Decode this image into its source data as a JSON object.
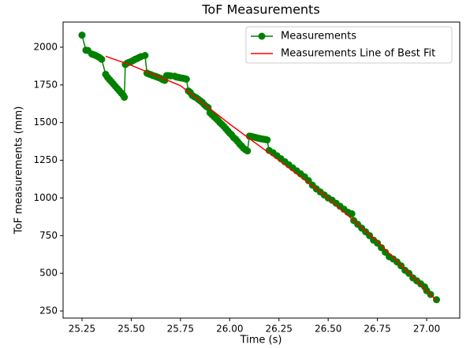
{
  "chart_data": {
    "type": "line",
    "title": "ToF Measurements",
    "xlabel": "Time (s)",
    "ylabel": "ToF measurements (mm)",
    "xlim": [
      25.154,
      27.168
    ],
    "ylim": [
      203,
      2167
    ],
    "xticks": [
      25.25,
      {
        "value": 25.5,
        "label": "25.50"
      },
      25.75,
      {
        "value": 26,
        "label": "26.00"
      },
      26.25,
      {
        "value": 26.5,
        "label": "26.50"
      },
      26.75,
      {
        "value": 27,
        "label": "27.00"
      }
    ],
    "yticks": [
      250,
      500,
      750,
      1000,
      1250,
      1500,
      1750,
      2000
    ],
    "legend": "upper right",
    "grid": false,
    "series": [
      {
        "name": "Measurements",
        "color": "#008000",
        "marker": "o",
        "x": [
          25.25,
          25.27,
          25.28,
          25.3,
          25.31,
          25.32,
          25.33,
          25.34,
          25.35,
          25.37,
          25.38,
          25.39,
          25.4,
          25.41,
          25.42,
          25.43,
          25.44,
          25.45,
          25.46,
          25.465,
          25.47,
          25.48,
          25.49,
          25.5,
          25.51,
          25.52,
          25.53,
          25.54,
          25.55,
          25.57,
          25.58,
          25.59,
          25.6,
          25.61,
          25.62,
          25.63,
          25.64,
          25.65,
          25.66,
          25.67,
          25.68,
          25.69,
          25.7,
          25.72,
          25.73,
          25.74,
          25.75,
          25.76,
          25.77,
          25.78,
          25.79,
          25.8,
          25.81,
          25.82,
          25.83,
          25.84,
          25.85,
          25.86,
          25.87,
          25.88,
          25.89,
          25.9,
          25.91,
          25.92,
          25.93,
          25.94,
          25.95,
          25.96,
          25.97,
          25.98,
          25.99,
          26.0,
          26.01,
          26.02,
          26.03,
          26.04,
          26.05,
          26.06,
          26.07,
          26.08,
          26.09,
          26.1,
          26.11,
          26.12,
          26.13,
          26.14,
          26.15,
          26.16,
          26.17,
          26.18,
          26.19,
          26.2,
          26.22,
          26.24,
          26.26,
          26.28,
          26.3,
          26.32,
          26.34,
          26.36,
          26.38,
          26.4,
          26.42,
          26.44,
          26.46,
          26.48,
          26.5,
          26.52,
          26.54,
          26.56,
          26.58,
          26.6,
          26.62,
          26.63,
          26.65,
          26.67,
          26.69,
          26.71,
          26.73,
          26.75,
          26.77,
          26.79,
          26.81,
          26.83,
          26.85,
          26.87,
          26.89,
          26.91,
          26.93,
          26.95,
          26.97,
          26.99,
          27.0,
          27.02,
          27.05
        ],
        "values": [
          2080,
          1980,
          1978,
          1955,
          1950,
          1945,
          1938,
          1930,
          1920,
          1820,
          1800,
          1785,
          1770,
          1755,
          1740,
          1725,
          1710,
          1695,
          1680,
          1668,
          1885,
          1895,
          1900,
          1905,
          1912,
          1920,
          1925,
          1932,
          1938,
          1945,
          1828,
          1822,
          1818,
          1812,
          1808,
          1803,
          1798,
          1793,
          1785,
          1780,
          1812,
          1812,
          1810,
          1808,
          1802,
          1800,
          1797,
          1795,
          1792,
          1788,
          1710,
          1700,
          1680,
          1672,
          1665,
          1655,
          1645,
          1635,
          1620,
          1608,
          1600,
          1565,
          1552,
          1540,
          1528,
          1515,
          1500,
          1488,
          1475,
          1460,
          1445,
          1430,
          1418,
          1400,
          1390,
          1375,
          1358,
          1345,
          1330,
          1320,
          1312,
          1410,
          1408,
          1405,
          1402,
          1398,
          1395,
          1392,
          1390,
          1388,
          1385,
          1315,
          1300,
          1280,
          1260,
          1240,
          1220,
          1200,
          1180,
          1160,
          1140,
          1115,
          1085,
          1060,
          1040,
          1020,
          1000,
          985,
          965,
          945,
          925,
          905,
          895,
          850,
          825,
          800,
          775,
          750,
          720,
          700,
          670,
          640,
          610,
          595,
          575,
          550,
          520,
          500,
          470,
          450,
          430,
          410,
          385,
          360,
          325
        ]
      },
      {
        "name": "Measurements Line of Best Fit",
        "color": "#ff0000",
        "x": [
          25.37,
          25.5,
          25.75,
          26.0,
          26.25,
          26.5,
          26.75,
          27.05
        ],
        "values": [
          1940,
          1880,
          1745,
          1490,
          1250,
          1000,
          710,
          320
        ]
      }
    ]
  }
}
